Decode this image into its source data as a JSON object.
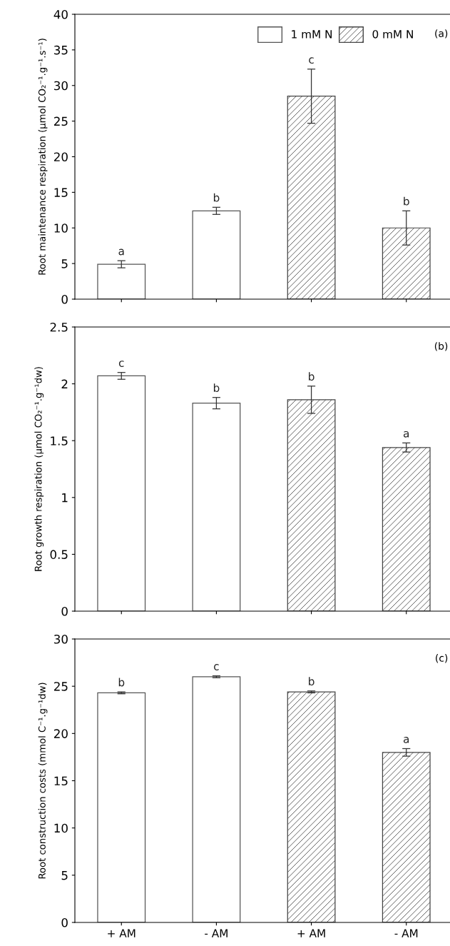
{
  "chart_data": [
    {
      "type": "bar",
      "categories": [
        null,
        null,
        null,
        null
      ],
      "ylabel": "Root maintenance respiration (µmol CO₂⁻¹.g⁻¹.s⁻¹)",
      "ylim": [
        0,
        40
      ],
      "yticks": [
        0,
        5,
        10,
        15,
        20,
        25,
        30,
        35,
        40
      ],
      "tick_labels": "y",
      "legend": "top right",
      "grid": false,
      "annotations": [
        "(a)"
      ],
      "series": [
        {
          "name": "1 mM N",
          "color": "#ffffff",
          "values": [
            4.9,
            12.4,
            null,
            null
          ],
          "errors": [
            0.5,
            0.5,
            null,
            null
          ],
          "value_labels": [
            "a",
            "b",
            null,
            null
          ]
        },
        {
          "name": "0 mM N",
          "color": "#444444",
          "values": [
            null,
            null,
            28.5,
            10.0
          ],
          "errors": [
            null,
            null,
            3.8,
            2.4
          ],
          "value_labels": [
            null,
            null,
            "c",
            "b"
          ]
        }
      ]
    },
    {
      "type": "bar",
      "categories": [
        null,
        null,
        null,
        null
      ],
      "ylabel": "Root growth respiration (µmol CO₂⁻¹.g⁻¹dw)",
      "ylim": [
        0,
        2.5
      ],
      "yticks": [
        0,
        0.5,
        1,
        1.5,
        2,
        2.5
      ],
      "tick_labels": "y",
      "grid": false,
      "annotations": [
        "(b)"
      ],
      "series": [
        {
          "color": "#ffffff",
          "values": [
            2.07,
            1.83,
            null,
            null
          ],
          "errors": [
            0.03,
            0.05,
            null,
            null
          ],
          "value_labels": [
            "c",
            "b",
            null,
            null
          ]
        },
        {
          "color": "#444444",
          "values": [
            null,
            null,
            1.86,
            1.44
          ],
          "errors": [
            null,
            null,
            0.12,
            0.04
          ],
          "value_labels": [
            null,
            null,
            "b",
            "a"
          ]
        }
      ]
    },
    {
      "type": "bar",
      "categories": [
        "+ AM",
        "- AM",
        "+ AM",
        "- AM"
      ],
      "ylabel": "Root construction costs (mmol C⁻¹.g⁻¹dw)",
      "ylim": [
        0,
        30
      ],
      "yticks": [
        0,
        5,
        10,
        15,
        20,
        25,
        30
      ],
      "grid": false,
      "annotations": [
        "(c)"
      ],
      "series": [
        {
          "color": "#ffffff",
          "values": [
            24.3,
            26.0,
            null,
            null
          ],
          "errors": [
            0.1,
            0.1,
            null,
            null
          ],
          "value_labels": [
            "b",
            "c",
            null,
            null
          ]
        },
        {
          "color": "#444444",
          "values": [
            null,
            null,
            24.4,
            18.0
          ],
          "errors": [
            null,
            null,
            0.1,
            0.4
          ],
          "value_labels": [
            null,
            null,
            "b",
            "a"
          ]
        }
      ]
    }
  ]
}
